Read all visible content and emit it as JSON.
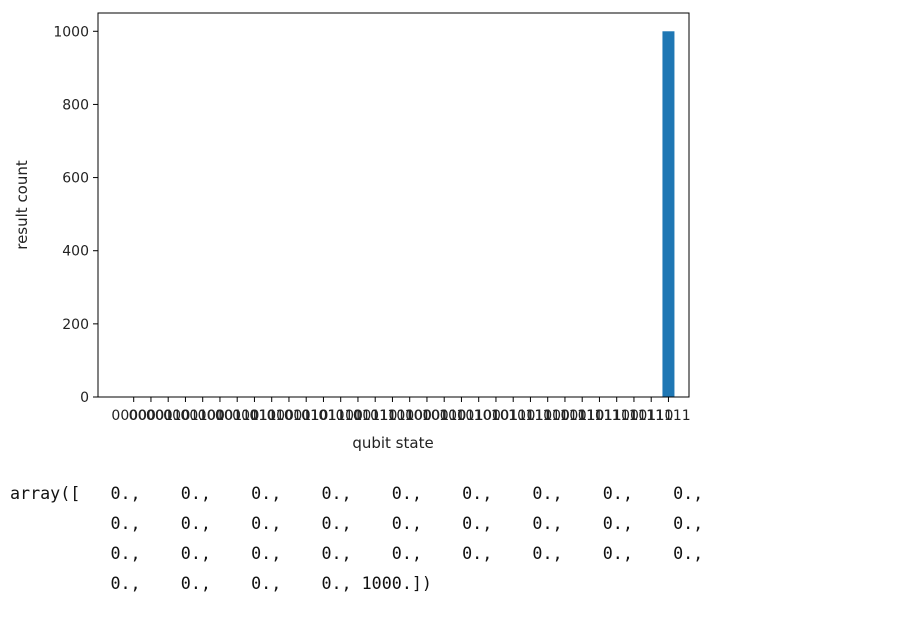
{
  "chart_data": {
    "type": "bar",
    "xlabel": "qubit state",
    "ylabel": "result count",
    "ylim": [
      0,
      1050
    ],
    "yticks": [
      0,
      200,
      400,
      600,
      800,
      1000
    ],
    "categories": [
      "00000",
      "00001",
      "00010",
      "00011",
      "00100",
      "00101",
      "00110",
      "00111",
      "01000",
      "01001",
      "01010",
      "01011",
      "01100",
      "01101",
      "01110",
      "01111",
      "10000",
      "10001",
      "10010",
      "10011",
      "10100",
      "10101",
      "10110",
      "10111",
      "11000",
      "11001",
      "11010",
      "11011",
      "11100",
      "11101",
      "11110",
      "11111"
    ],
    "values": [
      0,
      0,
      0,
      0,
      0,
      0,
      0,
      0,
      0,
      0,
      0,
      0,
      0,
      0,
      0,
      0,
      0,
      0,
      0,
      0,
      0,
      0,
      0,
      0,
      0,
      0,
      0,
      0,
      0,
      0,
      0,
      1000
    ],
    "bar_color": "#1f77b4",
    "grid": false
  },
  "output": {
    "lines": [
      "array([   0.,    0.,    0.,    0.,    0.,    0.,    0.,    0.,    0.,",
      "          0.,    0.,    0.,    0.,    0.,    0.,    0.,    0.,    0.,",
      "          0.,    0.,    0.,    0.,    0.,    0.,    0.,    0.,    0.,",
      "          0.,    0.,    0.,    0., 1000.])"
    ]
  }
}
